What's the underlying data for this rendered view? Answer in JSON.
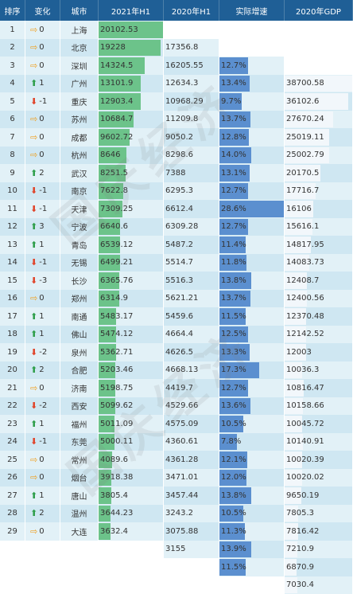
{
  "headers": [
    "排序",
    "变化",
    "城市",
    "2021年H1",
    "2020年H1",
    "实际增速",
    "2020年GDP"
  ],
  "chart_data": {
    "type": "table",
    "columns": [
      "排序",
      "变化",
      "城市",
      "2021年H1",
      "2020年H1",
      "实际增速",
      "2020年GDP"
    ],
    "rows": [
      {
        "rank": "1",
        "dir": "eq",
        "chg": "0",
        "city": "上海",
        "h1_2021": "20102.53",
        "h1_2020": "17356.8",
        "growth": "12.7%",
        "gdp2020": "38700.58"
      },
      {
        "rank": "2",
        "dir": "eq",
        "chg": "0",
        "city": "北京",
        "h1_2021": "19228",
        "h1_2020": "16205.55",
        "growth": "13.4%",
        "gdp2020": "36102.6"
      },
      {
        "rank": "3",
        "dir": "eq",
        "chg": "0",
        "city": "深圳",
        "h1_2021": "14324.5",
        "h1_2020": "12634.3",
        "growth": "9.7%",
        "gdp2020": "27670.24"
      },
      {
        "rank": "4",
        "dir": "up",
        "chg": "1",
        "city": "广州",
        "h1_2021": "13101.9",
        "h1_2020": "10968.29",
        "growth": "13.7%",
        "gdp2020": "25019.11"
      },
      {
        "rank": "5",
        "dir": "dn",
        "chg": "-1",
        "city": "重庆",
        "h1_2021": "12903.4",
        "h1_2020": "11209.8",
        "growth": "12.8%",
        "gdp2020": "25002.79"
      },
      {
        "rank": "6",
        "dir": "eq",
        "chg": "0",
        "city": "苏州",
        "h1_2021": "10684.7",
        "h1_2020": "9050.2",
        "growth": "14.0%",
        "gdp2020": "20170.5"
      },
      {
        "rank": "7",
        "dir": "eq",
        "chg": "0",
        "city": "成都",
        "h1_2021": "9602.72",
        "h1_2020": "8298.6",
        "growth": "13.1%",
        "gdp2020": "17716.7"
      },
      {
        "rank": "8",
        "dir": "eq",
        "chg": "0",
        "city": "杭州",
        "h1_2021": "8646",
        "h1_2020": "7388",
        "growth": "12.7%",
        "gdp2020": "16106"
      },
      {
        "rank": "9",
        "dir": "up",
        "chg": "2",
        "city": "武汉",
        "h1_2021": "8251.5",
        "h1_2020": "6295.3",
        "growth": "28.6%",
        "gdp2020": "15616.1"
      },
      {
        "rank": "10",
        "dir": "dn",
        "chg": "-1",
        "city": "南京",
        "h1_2021": "7622.8",
        "h1_2020": "6612.4",
        "growth": "12.7%",
        "gdp2020": "14817.95"
      },
      {
        "rank": "11",
        "dir": "dn",
        "chg": "-1",
        "city": "天津",
        "h1_2021": "7309.25",
        "h1_2020": "6309.28",
        "growth": "11.4%",
        "gdp2020": "14083.73"
      },
      {
        "rank": "12",
        "dir": "up",
        "chg": "3",
        "city": "宁波",
        "h1_2021": "6640.6",
        "h1_2020": "5487.2",
        "growth": "11.8%",
        "gdp2020": "12408.7"
      },
      {
        "rank": "13",
        "dir": "up",
        "chg": "1",
        "city": "青岛",
        "h1_2021": "6539.12",
        "h1_2020": "5514.7",
        "growth": "13.8%",
        "gdp2020": "12400.56"
      },
      {
        "rank": "14",
        "dir": "dn",
        "chg": "-1",
        "city": "无锡",
        "h1_2021": "6499.21",
        "h1_2020": "5516.3",
        "growth": "13.7%",
        "gdp2020": "12370.48"
      },
      {
        "rank": "15",
        "dir": "dn",
        "chg": "-3",
        "city": "长沙",
        "h1_2021": "6365.76",
        "h1_2020": "5621.21",
        "growth": "11.5%",
        "gdp2020": "12142.52"
      },
      {
        "rank": "16",
        "dir": "eq",
        "chg": "0",
        "city": "郑州",
        "h1_2021": "6314.9",
        "h1_2020": "5459.6",
        "growth": "12.5%",
        "gdp2020": "12003"
      },
      {
        "rank": "17",
        "dir": "up",
        "chg": "1",
        "city": "南通",
        "h1_2021": "5483.17",
        "h1_2020": "4664.4",
        "growth": "13.3%",
        "gdp2020": "10036.3"
      },
      {
        "rank": "18",
        "dir": "up",
        "chg": "1",
        "city": "佛山",
        "h1_2021": "5474.12",
        "h1_2020": "4626.5",
        "growth": "17.3%",
        "gdp2020": "10816.47"
      },
      {
        "rank": "19",
        "dir": "dn",
        "chg": "-2",
        "city": "泉州",
        "h1_2021": "5362.71",
        "h1_2020": "4668.13",
        "growth": "12.7%",
        "gdp2020": "10158.66"
      },
      {
        "rank": "20",
        "dir": "up",
        "chg": "2",
        "city": "合肥",
        "h1_2021": "5203.46",
        "h1_2020": "4419.7",
        "growth": "13.6%",
        "gdp2020": "10045.72"
      },
      {
        "rank": "21",
        "dir": "eq",
        "chg": "0",
        "city": "济南",
        "h1_2021": "5198.75",
        "h1_2020": "4529.66",
        "growth": "10.5%",
        "gdp2020": "10140.91"
      },
      {
        "rank": "22",
        "dir": "dn",
        "chg": "-2",
        "city": "西安",
        "h1_2021": "5099.62",
        "h1_2020": "4575.09",
        "growth": "7.8%",
        "gdp2020": "10020.39"
      },
      {
        "rank": "23",
        "dir": "up",
        "chg": "1",
        "city": "福州",
        "h1_2021": "5011.09",
        "h1_2020": "4360.61",
        "growth": "12.1%",
        "gdp2020": "10020.02"
      },
      {
        "rank": "24",
        "dir": "dn",
        "chg": "-1",
        "city": "东莞",
        "h1_2021": "5000.11",
        "h1_2020": "4361.28",
        "growth": "12.0%",
        "gdp2020": "9650.19"
      },
      {
        "rank": "25",
        "dir": "eq",
        "chg": "0",
        "city": "常州",
        "h1_2021": "4089.6",
        "h1_2020": "3471.01",
        "growth": "13.8%",
        "gdp2020": "7805.3"
      },
      {
        "rank": "26",
        "dir": "eq",
        "chg": "0",
        "city": "烟台",
        "h1_2021": "3918.38",
        "h1_2020": "3457.44",
        "growth": "10.5%",
        "gdp2020": "7816.42"
      },
      {
        "rank": "27",
        "dir": "up",
        "chg": "1",
        "city": "唐山",
        "h1_2021": "3805.4",
        "h1_2020": "3243.2",
        "growth": "11.3%",
        "gdp2020": "7210.9"
      },
      {
        "rank": "28",
        "dir": "up",
        "chg": "2",
        "city": "温州",
        "h1_2021": "3644.23",
        "h1_2020": "3075.88",
        "growth": "13.9%",
        "gdp2020": "6870.9"
      },
      {
        "rank": "29",
        "dir": "eq",
        "chg": "0",
        "city": "大连",
        "h1_2021": "3632.4",
        "h1_2020": "3155",
        "growth": "11.5%",
        "gdp2020": "7030.4"
      }
    ],
    "bar_max": {
      "h1_2021": 20102.53,
      "growth": 28.6,
      "gdp2020": 38700.58
    }
  },
  "colors": {
    "header": "#1f5f96",
    "row_odd": "#e2f1f7",
    "row_even": "#cfe7f2",
    "bar_green": "#6cc38a",
    "bar_blue": "#5b8fcf",
    "bar_light": "#f2f7fb"
  },
  "watermark": "国庆经济"
}
